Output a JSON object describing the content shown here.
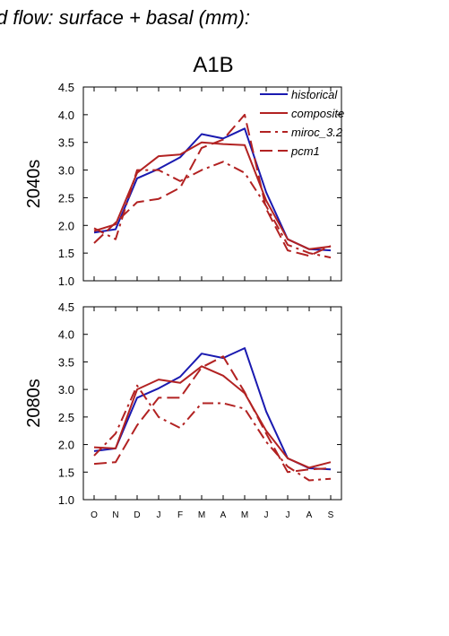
{
  "header": {
    "title": "d flow: surface + basal (mm):",
    "scenario": "A1B"
  },
  "chart_data": [
    {
      "type": "line",
      "row_label": "2040s",
      "x": [
        "O",
        "N",
        "D",
        "J",
        "F",
        "M",
        "A",
        "M",
        "J",
        "J",
        "A",
        "S"
      ],
      "ylim": [
        1.0,
        4.5
      ],
      "yticks": [
        "1.0",
        "1.5",
        "2.0",
        "2.5",
        "3.0",
        "3.5",
        "4.0",
        "4.5"
      ],
      "legend_position": "top-right",
      "series": [
        {
          "name": "historical",
          "color": "#1a1ab0",
          "dash": "solid",
          "values": [
            1.87,
            1.93,
            2.85,
            3.02,
            3.23,
            3.65,
            3.57,
            3.75,
            2.6,
            1.75,
            1.57,
            1.55
          ]
        },
        {
          "name": "composite",
          "color": "#b22222",
          "dash": "solid",
          "values": [
            1.9,
            2.02,
            2.95,
            3.25,
            3.28,
            3.5,
            3.47,
            3.45,
            2.45,
            1.75,
            1.57,
            1.62
          ]
        },
        {
          "name": "miroc_3.2",
          "color": "#b22222",
          "dash": "dashdot",
          "values": [
            1.95,
            1.75,
            3.0,
            3.0,
            2.8,
            3.0,
            3.15,
            2.95,
            2.35,
            1.65,
            1.5,
            1.42
          ]
        },
        {
          "name": "pcm1",
          "color": "#b22222",
          "dash": "dashed",
          "values": [
            1.68,
            2.05,
            2.42,
            2.48,
            2.68,
            3.4,
            3.55,
            4.0,
            2.3,
            1.55,
            1.45,
            1.63
          ]
        }
      ]
    },
    {
      "type": "line",
      "row_label": "2080s",
      "x": [
        "O",
        "N",
        "D",
        "J",
        "F",
        "M",
        "A",
        "M",
        "J",
        "J",
        "A",
        "S"
      ],
      "ylim": [
        1.0,
        4.5
      ],
      "yticks": [
        "1.0",
        "1.5",
        "2.0",
        "2.5",
        "3.0",
        "3.5",
        "4.0",
        "4.5"
      ],
      "series": [
        {
          "name": "historical",
          "color": "#1a1ab0",
          "dash": "solid",
          "values": [
            1.88,
            1.93,
            2.85,
            3.02,
            3.23,
            3.65,
            3.57,
            3.75,
            2.6,
            1.75,
            1.57,
            1.55
          ]
        },
        {
          "name": "composite",
          "color": "#b22222",
          "dash": "solid",
          "values": [
            1.95,
            1.93,
            3.0,
            3.18,
            3.12,
            3.42,
            3.25,
            2.93,
            2.25,
            1.75,
            1.58,
            1.68
          ]
        },
        {
          "name": "miroc_3.2",
          "color": "#b22222",
          "dash": "dashdot",
          "values": [
            1.8,
            2.2,
            3.07,
            2.5,
            2.3,
            2.75,
            2.75,
            2.65,
            2.05,
            1.6,
            1.35,
            1.38
          ]
        },
        {
          "name": "pcm1",
          "color": "#b22222",
          "dash": "dashed",
          "values": [
            1.65,
            1.68,
            2.35,
            2.85,
            2.85,
            3.4,
            3.6,
            2.95,
            2.2,
            1.5,
            1.55,
            1.57
          ]
        }
      ]
    }
  ]
}
